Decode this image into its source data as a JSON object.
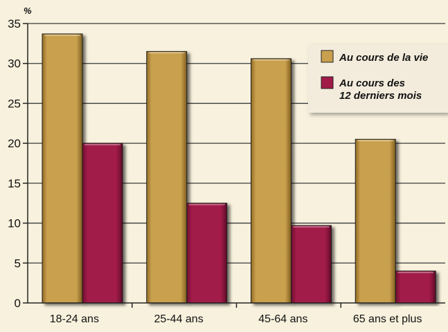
{
  "chart_data": {
    "type": "bar",
    "unit_label": "%",
    "categories": [
      "18-24 ans",
      "25-44 ans",
      "45-64 ans",
      "65 ans et plus"
    ],
    "series": [
      {
        "name": "Au cours de la vie",
        "values": [
          33.7,
          31.5,
          30.6,
          20.5
        ],
        "color": "#c9a04d"
      },
      {
        "name": "Au cours des 12 derniers mois",
        "name_lines": [
          "Au cours des",
          "12 derniers mois"
        ],
        "values": [
          20.0,
          12.5,
          9.7,
          4.0
        ],
        "color": "#a11a48"
      }
    ],
    "ylim": [
      0,
      35
    ],
    "yticks": [
      "0",
      "5",
      "10",
      "15",
      "20",
      "25",
      "30",
      "35"
    ],
    "grid": true,
    "legend_position": "top-right",
    "colors": {
      "background": "#f8f1dd",
      "grid": "#3a3a3a",
      "legend_box": "#f3ecdc"
    }
  }
}
